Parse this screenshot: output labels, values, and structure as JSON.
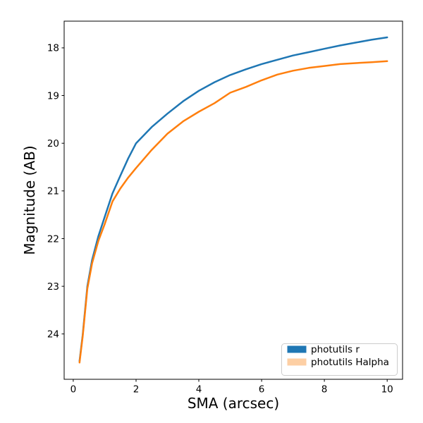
{
  "figure": {
    "background": "#ffffff"
  },
  "chart_data": {
    "type": "line",
    "title": "",
    "xlabel": "SMA (arcsec)",
    "ylabel": "Magnitude (AB)",
    "xlim": [
      -0.29,
      10.49
    ],
    "ylim": [
      17.44,
      24.95
    ],
    "y_axis_inverted": true,
    "grid": false,
    "xticks": [
      0,
      2,
      4,
      6,
      8,
      10
    ],
    "yticks": [
      18,
      19,
      20,
      21,
      22,
      23,
      24
    ],
    "x": [
      0.2,
      0.3,
      0.45,
      0.6,
      0.8,
      1.0,
      1.25,
      1.5,
      1.75,
      2.0,
      2.5,
      3.0,
      3.5,
      4.0,
      4.5,
      5.0,
      5.5,
      6.0,
      6.5,
      7.0,
      7.5,
      8.0,
      8.5,
      9.0,
      9.5,
      10.0
    ],
    "series": [
      {
        "name": "photutils r",
        "color": "#1f77b4",
        "values": [
          24.57,
          24.02,
          23.0,
          22.45,
          21.95,
          21.55,
          21.05,
          20.68,
          20.32,
          20.0,
          19.66,
          19.38,
          19.12,
          18.9,
          18.72,
          18.57,
          18.45,
          18.34,
          18.25,
          18.16,
          18.09,
          18.02,
          17.95,
          17.89,
          17.83,
          17.78
        ]
      },
      {
        "name": "photutils Halpha",
        "color": "#ff7f0e",
        "values": [
          24.6,
          24.05,
          23.05,
          22.52,
          22.05,
          21.7,
          21.22,
          20.95,
          20.72,
          20.52,
          20.14,
          19.8,
          19.54,
          19.34,
          19.16,
          18.94,
          18.82,
          18.68,
          18.56,
          18.48,
          18.42,
          18.38,
          18.34,
          18.32,
          18.3,
          18.28
        ]
      }
    ],
    "legend": {
      "position": "lower right",
      "entries": [
        {
          "label": "photutils r",
          "patch_color": "#1f77b4"
        },
        {
          "label": "photutils Halpha",
          "patch_color": "#fdcfa4"
        }
      ],
      "border_color": "#cccccc"
    },
    "line_width": 2.5,
    "axis_color": "#000000"
  }
}
